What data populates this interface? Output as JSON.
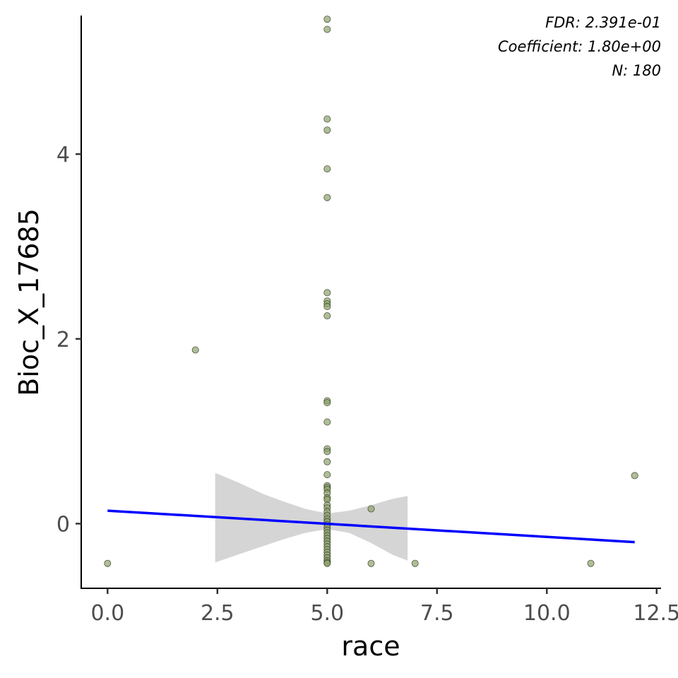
{
  "chart_data": {
    "type": "scatter",
    "xlabel": "race",
    "ylabel": "Bioc_X_17685",
    "xlim": [
      -0.6,
      12.6
    ],
    "ylim": [
      -0.7,
      5.5
    ],
    "x_ticks": [
      0.0,
      2.5,
      5.0,
      7.5,
      10.0,
      12.5
    ],
    "x_tick_labels": [
      "0.0",
      "2.5",
      "5.0",
      "7.5",
      "10.0",
      "12.5"
    ],
    "y_ticks": [
      0,
      2,
      4
    ],
    "y_tick_labels": [
      "0",
      "2",
      "4"
    ],
    "grid": false,
    "annotations": [
      "FDR: 2.391e-01",
      "Coefficient: 1.80e+00",
      "N: 180"
    ],
    "point_color": "#8da26b",
    "fit_line": {
      "color": "#0000ff",
      "x": [
        0,
        12
      ],
      "y": [
        0.14,
        -0.2
      ]
    },
    "confidence_band": {
      "color": "#bebebe",
      "x": [
        2.45,
        3.0,
        3.5,
        4.0,
        4.5,
        5.0,
        5.5,
        6.0,
        6.5,
        6.83
      ],
      "lower": [
        -0.42,
        -0.33,
        -0.25,
        -0.17,
        -0.1,
        -0.06,
        -0.1,
        -0.21,
        -0.34,
        -0.4
      ],
      "upper": [
        0.55,
        0.44,
        0.33,
        0.24,
        0.16,
        0.11,
        0.14,
        0.2,
        0.27,
        0.3
      ]
    },
    "points": [
      {
        "x": 0,
        "y": -0.43
      },
      {
        "x": 2,
        "y": 1.88
      },
      {
        "x": 6,
        "y": 0.16
      },
      {
        "x": 6,
        "y": -0.43
      },
      {
        "x": 7,
        "y": -0.43
      },
      {
        "x": 11,
        "y": -0.43
      },
      {
        "x": 12,
        "y": 0.52
      },
      {
        "x": 5,
        "y": 5.46
      },
      {
        "x": 5,
        "y": 5.35
      },
      {
        "x": 5,
        "y": 4.38
      },
      {
        "x": 5,
        "y": 4.26
      },
      {
        "x": 5,
        "y": 3.84
      },
      {
        "x": 5,
        "y": 3.53
      },
      {
        "x": 5,
        "y": 2.5
      },
      {
        "x": 5,
        "y": 2.41
      },
      {
        "x": 5,
        "y": 2.38
      },
      {
        "x": 5,
        "y": 2.35
      },
      {
        "x": 5,
        "y": 2.25
      },
      {
        "x": 5,
        "y": 1.33
      },
      {
        "x": 5,
        "y": 1.31
      },
      {
        "x": 5,
        "y": 1.1
      },
      {
        "x": 5,
        "y": 0.81
      },
      {
        "x": 5,
        "y": 0.78
      },
      {
        "x": 5,
        "y": 0.67
      },
      {
        "x": 5,
        "y": 0.53
      },
      {
        "x": 5,
        "y": 0.41
      },
      {
        "x": 5,
        "y": 0.39
      },
      {
        "x": 5,
        "y": 0.37
      },
      {
        "x": 5,
        "y": 0.33
      },
      {
        "x": 5,
        "y": 0.28
      },
      {
        "x": 5,
        "y": 0.26
      },
      {
        "x": 5,
        "y": 0.2
      },
      {
        "x": 5,
        "y": 0.17
      },
      {
        "x": 5,
        "y": 0.13
      },
      {
        "x": 5,
        "y": 0.09
      },
      {
        "x": 5,
        "y": 0.05
      },
      {
        "x": 5,
        "y": 0.02
      },
      {
        "x": 5,
        "y": -0.01
      },
      {
        "x": 5,
        "y": -0.04
      },
      {
        "x": 5,
        "y": -0.07
      },
      {
        "x": 5,
        "y": -0.1
      },
      {
        "x": 5,
        "y": -0.13
      },
      {
        "x": 5,
        "y": -0.16
      },
      {
        "x": 5,
        "y": -0.19
      },
      {
        "x": 5,
        "y": -0.22
      },
      {
        "x": 5,
        "y": -0.25
      },
      {
        "x": 5,
        "y": -0.28
      },
      {
        "x": 5,
        "y": -0.31
      },
      {
        "x": 5,
        "y": -0.34
      },
      {
        "x": 5,
        "y": -0.37
      },
      {
        "x": 5,
        "y": -0.4
      },
      {
        "x": 5,
        "y": -0.42
      },
      {
        "x": 5,
        "y": -0.43
      }
    ]
  }
}
